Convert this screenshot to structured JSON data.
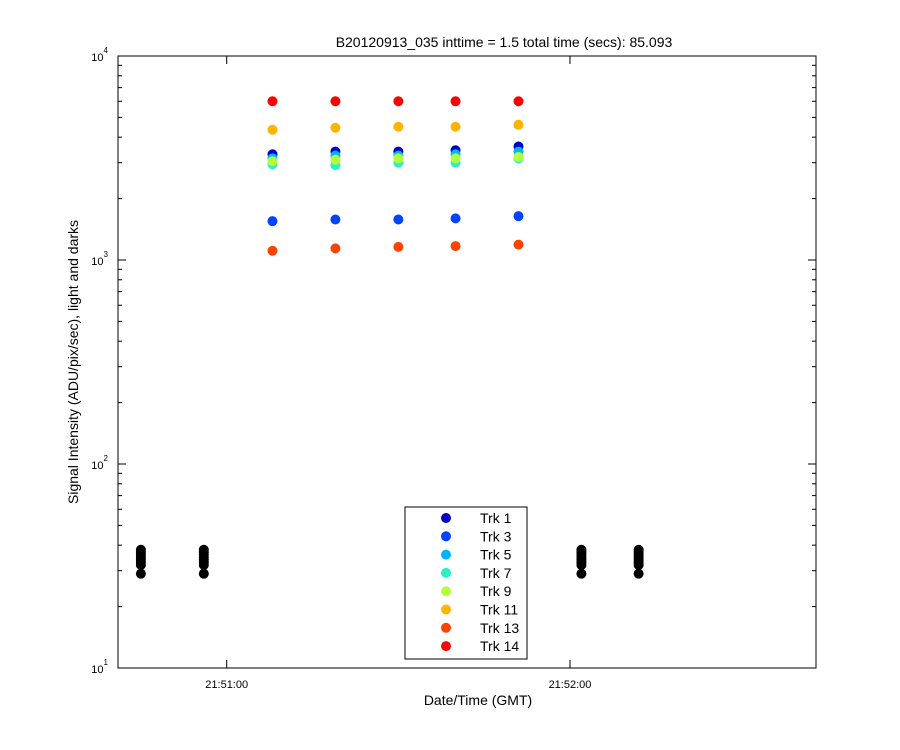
{
  "chart_data": {
    "type": "scatter",
    "title": "B20120913_035 inttime = 1.5 total time (secs): 85.093",
    "xlabel": "Date/Time (GMT)",
    "ylabel": "Signal Intensity (ADU/pix/sec), light and darks",
    "yscale": "log",
    "ylim": [
      10,
      10000
    ],
    "y_ticks": [
      {
        "value": 10,
        "base": "10",
        "exp": "1"
      },
      {
        "value": 100,
        "base": "10",
        "exp": "2"
      },
      {
        "value": 1000,
        "base": "10",
        "exp": "3"
      },
      {
        "value": 10000,
        "base": "10",
        "exp": "4"
      }
    ],
    "xlim": [
      "21:50:41",
      "21:52:43"
    ],
    "x_ticks": [
      "21:51:00",
      "21:52:00"
    ],
    "grid": false,
    "legend_position": "bottom-center",
    "light_times": [
      "21:51:08",
      "21:51:19",
      "21:51:30",
      "21:51:40",
      "21:51:51"
    ],
    "dark_times": [
      "21:50:45",
      "21:50:56",
      "21:52:02",
      "21:52:12"
    ],
    "dark_values": [
      29,
      32,
      33,
      34,
      35,
      36,
      37,
      38
    ],
    "dark_color": "#000000",
    "series": [
      {
        "name": "Trk 1",
        "color": "#0000c8",
        "values": [
          3300,
          3400,
          3400,
          3450,
          3600
        ]
      },
      {
        "name": "Trk 3",
        "color": "#0044ff",
        "values": [
          1550,
          1580,
          1580,
          1600,
          1640
        ]
      },
      {
        "name": "Trk 5",
        "color": "#00b4ff",
        "values": [
          3150,
          3250,
          3250,
          3300,
          3400
        ]
      },
      {
        "name": "Trk 7",
        "color": "#2af0c8",
        "values": [
          2950,
          2920,
          3000,
          3000,
          3150
        ]
      },
      {
        "name": "Trk 9",
        "color": "#b4ff3c",
        "values": [
          3050,
          3100,
          3150,
          3150,
          3200
        ]
      },
      {
        "name": "Trk 11",
        "color": "#ffb400",
        "values": [
          4350,
          4450,
          4500,
          4500,
          4600
        ]
      },
      {
        "name": "Trk 13",
        "color": "#ff4400",
        "values": [
          1110,
          1140,
          1160,
          1170,
          1190
        ]
      },
      {
        "name": "Trk 14",
        "color": "#ff0000",
        "values": [
          6000,
          6000,
          6000,
          6000,
          6000
        ]
      }
    ]
  }
}
